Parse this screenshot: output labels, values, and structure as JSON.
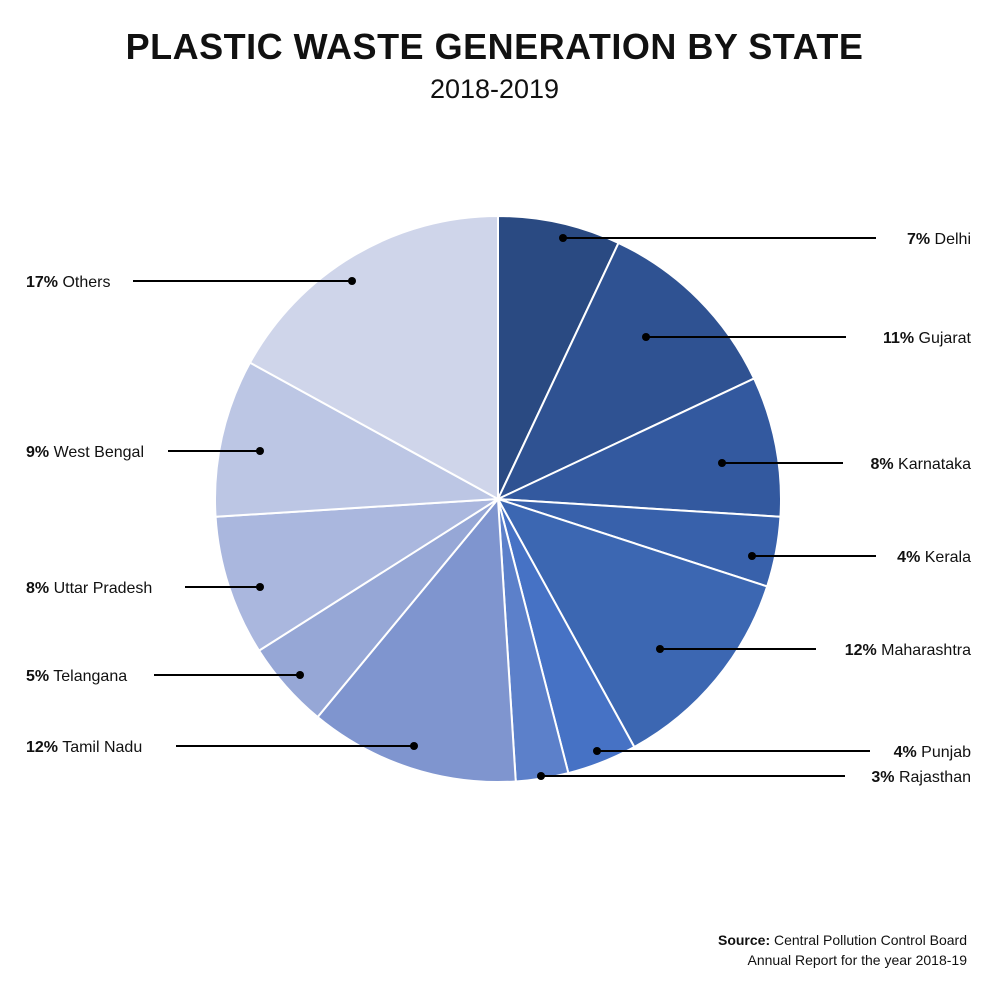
{
  "title": "PLASTIC WASTE GENERATION BY STATE",
  "subtitle": "2018-2019",
  "source": {
    "label": "Source:",
    "line1": "Central Pollution Control Board",
    "line2": "Annual Report for the year 2018-19"
  },
  "chart_data": {
    "type": "pie",
    "title": "PLASTIC WASTE GENERATION BY STATE",
    "subtitle": "2018-2019",
    "start": "12 o'clock",
    "direction": "clockwise",
    "slices": [
      {
        "label": "Delhi",
        "value": 7,
        "color": "#2a4a82"
      },
      {
        "label": "Gujarat",
        "value": 11,
        "color": "#2f5292"
      },
      {
        "label": "Karnataka",
        "value": 8,
        "color": "#33599f"
      },
      {
        "label": "Kerala",
        "value": 4,
        "color": "#3861ab"
      },
      {
        "label": "Maharashtra",
        "value": 12,
        "color": "#3c67b2"
      },
      {
        "label": "Punjab",
        "value": 4,
        "color": "#4672c5"
      },
      {
        "label": "Rajasthan",
        "value": 3,
        "color": "#5c80ca"
      },
      {
        "label": "Tamil Nadu",
        "value": 12,
        "color": "#7f95cf"
      },
      {
        "label": "Telangana",
        "value": 5,
        "color": "#96a7d6"
      },
      {
        "label": "Uttar Pradesh",
        "value": 8,
        "color": "#aab7de"
      },
      {
        "label": "West Bengal",
        "value": 9,
        "color": "#bcc6e4"
      },
      {
        "label": "Others",
        "value": 17,
        "color": "#cfd5ea"
      }
    ]
  }
}
